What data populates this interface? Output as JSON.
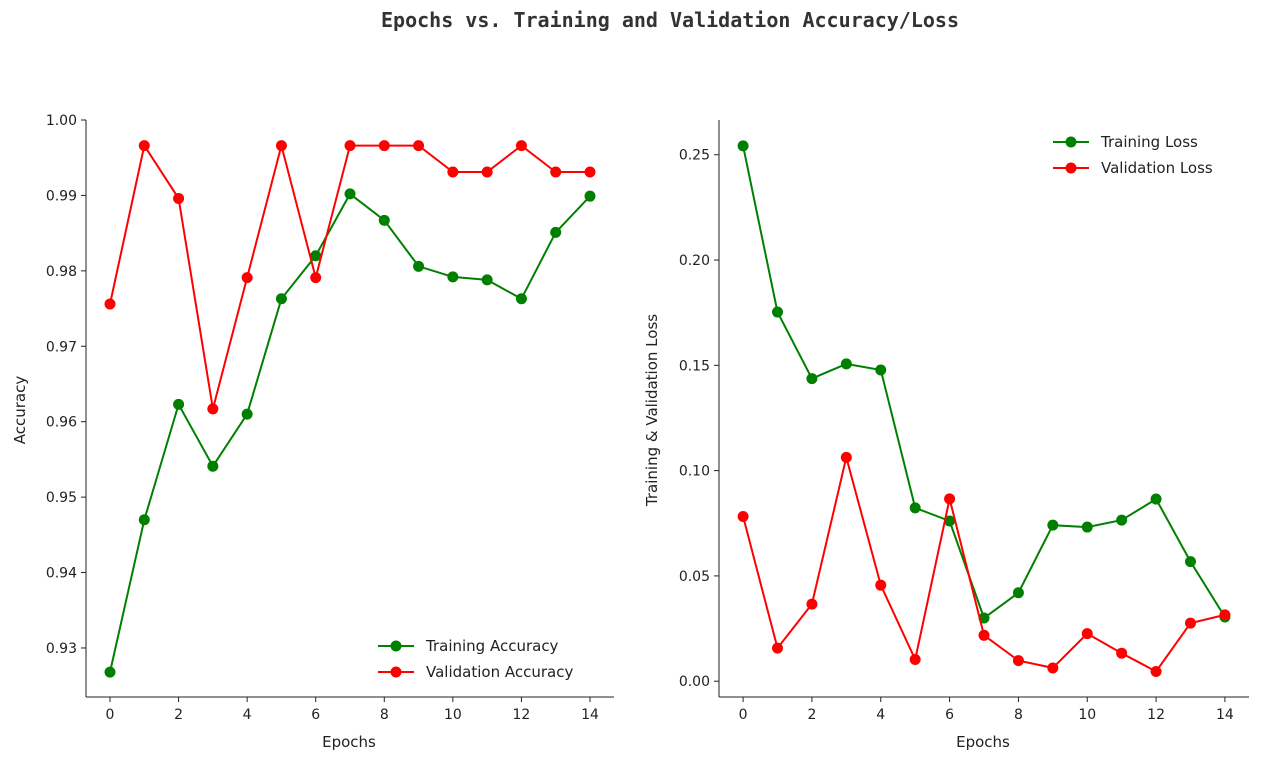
{
  "figure_title": "Epochs vs. Training and Validation Accuracy/Loss",
  "colors": {
    "training": "#008000",
    "validation": "#ff0000"
  },
  "chart_data": [
    {
      "type": "line",
      "xlabel": "Epochs",
      "ylabel": "Accuracy",
      "x": [
        0,
        1,
        2,
        3,
        4,
        5,
        6,
        7,
        8,
        9,
        10,
        11,
        12,
        13,
        14
      ],
      "xlim": [
        -0.7,
        14.7
      ],
      "ylim": [
        0.9235,
        1.0
      ],
      "xticks": [
        0,
        2,
        4,
        6,
        8,
        10,
        12,
        14
      ],
      "yticks": [
        0.93,
        0.94,
        0.95,
        0.96,
        0.97,
        0.98,
        0.99,
        1.0
      ],
      "ytick_labels": [
        "0.93",
        "0.94",
        "0.95",
        "0.96",
        "0.97",
        "0.98",
        "0.99",
        "1.00"
      ],
      "legend_loc": "lower-right",
      "series": [
        {
          "name": "Training Accuracy",
          "color": "#008000",
          "values": [
            0.9268,
            0.947,
            0.9623,
            0.9541,
            0.961,
            0.9763,
            0.982,
            0.9902,
            0.9867,
            0.9806,
            0.9792,
            0.9788,
            0.9763,
            0.9851,
            0.9899
          ]
        },
        {
          "name": "Validation Accuracy",
          "color": "#ff0000",
          "values": [
            0.9756,
            0.9966,
            0.9896,
            0.9617,
            0.9791,
            0.9966,
            0.9791,
            0.9966,
            0.9966,
            0.9966,
            0.9931,
            0.9931,
            0.9966,
            0.9931,
            0.9931
          ]
        }
      ]
    },
    {
      "type": "line",
      "xlabel": "Epochs",
      "ylabel": "Training & Validation Loss",
      "x": [
        0,
        1,
        2,
        3,
        4,
        5,
        6,
        7,
        8,
        9,
        10,
        11,
        12,
        13,
        14
      ],
      "xlim": [
        -0.7,
        14.7
      ],
      "ylim": [
        -0.0075,
        0.2665
      ],
      "xticks": [
        0,
        2,
        4,
        6,
        8,
        10,
        12,
        14
      ],
      "yticks": [
        0.0,
        0.05,
        0.1,
        0.15,
        0.2,
        0.25
      ],
      "ytick_labels": [
        "0.00",
        "0.05",
        "0.10",
        "0.15",
        "0.20",
        "0.25"
      ],
      "legend_loc": "upper-right",
      "series": [
        {
          "name": "Training Loss",
          "color": "#008000",
          "values": [
            0.2542,
            0.1753,
            0.1437,
            0.1507,
            0.1478,
            0.0823,
            0.0761,
            0.03,
            0.042,
            0.0741,
            0.0732,
            0.0765,
            0.0865,
            0.0568,
            0.0305
          ]
        },
        {
          "name": "Validation Loss",
          "color": "#ff0000",
          "values": [
            0.0782,
            0.0157,
            0.0366,
            0.1063,
            0.0456,
            0.0103,
            0.0866,
            0.0218,
            0.0098,
            0.0063,
            0.0226,
            0.0133,
            0.0046,
            0.0276,
            0.0315
          ]
        }
      ]
    }
  ]
}
